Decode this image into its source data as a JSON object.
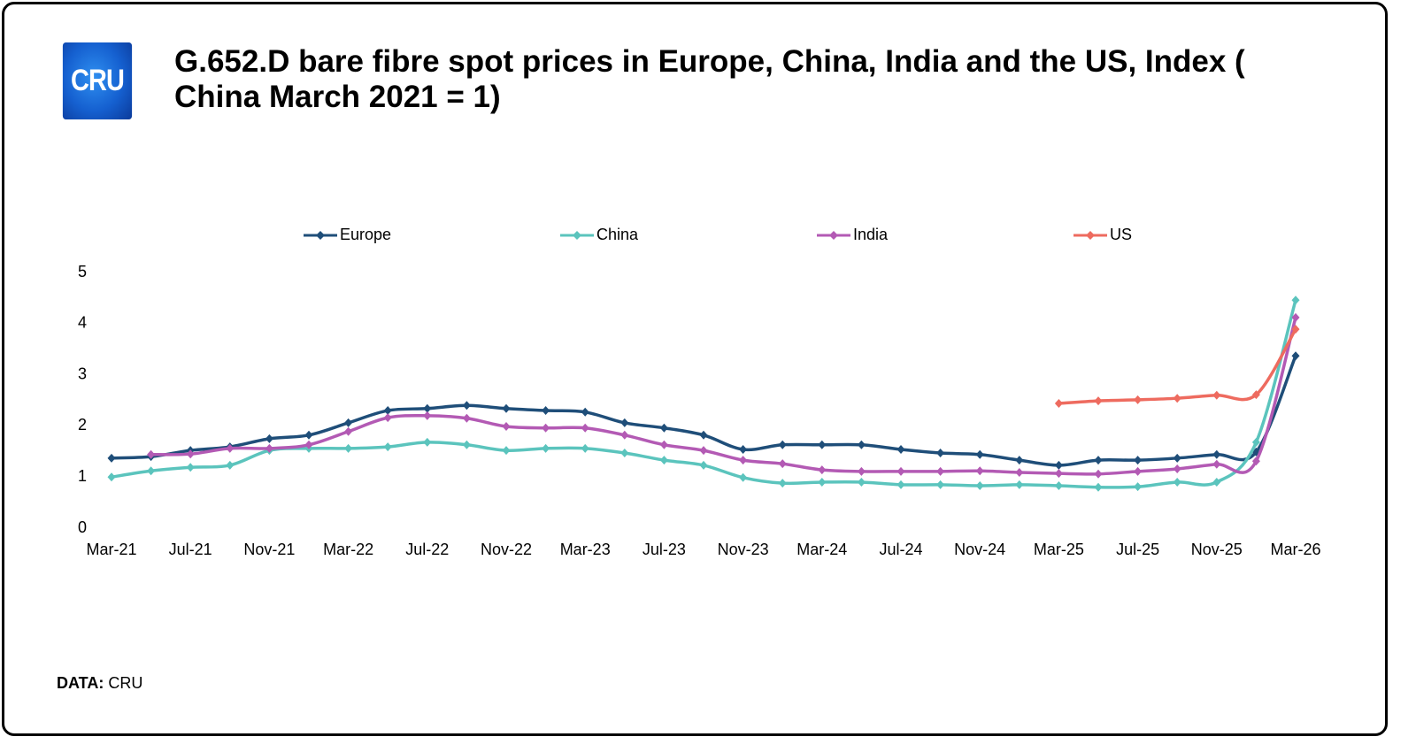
{
  "logo_text": "CRU",
  "footer": {
    "label": "DATA:",
    "source": "CRU"
  },
  "chart_data": {
    "type": "line",
    "title": "G.652.D bare fibre spot prices in Europe, China, India and the US, Index ( China March 2021 = 1)",
    "categories": [
      "Mar-21",
      null,
      "Jul-21",
      null,
      "Nov-21",
      null,
      "Mar-22",
      null,
      "Jul-22",
      null,
      "Nov-22",
      null,
      "Mar-23",
      null,
      "Jul-23",
      null,
      "Nov-23",
      null,
      "Mar-24",
      null,
      "Jul-24",
      null,
      "Nov-24",
      null,
      "Mar-25",
      null,
      "Jul-25",
      null,
      "Nov-25",
      null,
      "Mar-26"
    ],
    "ylim": [
      0,
      5
    ],
    "yticks": [
      0,
      1,
      2,
      3,
      4,
      5
    ],
    "grid": false,
    "legend": "top",
    "smooth": true,
    "series": [
      {
        "name": "Europe",
        "color": "#1f4e79",
        "values": [
          1.37,
          1.4,
          1.52,
          1.59,
          1.75,
          1.82,
          2.06,
          2.3,
          2.34,
          2.4,
          2.34,
          2.3,
          2.27,
          2.06,
          1.96,
          1.82,
          1.54,
          1.63,
          1.63,
          1.63,
          1.54,
          1.47,
          1.44,
          1.33,
          1.23,
          1.33,
          1.33,
          1.37,
          1.44,
          1.49,
          3.37
        ]
      },
      {
        "name": "China",
        "color": "#5bc4bd",
        "values": [
          1.0,
          1.12,
          1.19,
          1.23,
          1.52,
          1.56,
          1.56,
          1.59,
          1.68,
          1.63,
          1.52,
          1.56,
          1.56,
          1.47,
          1.33,
          1.23,
          0.99,
          0.88,
          0.9,
          0.9,
          0.85,
          0.85,
          0.83,
          0.85,
          0.83,
          0.8,
          0.81,
          0.9,
          0.9,
          1.68,
          4.46
        ]
      },
      {
        "name": "India",
        "color": "#b35ab4",
        "values": [
          null,
          1.44,
          1.45,
          1.56,
          1.56,
          1.63,
          1.89,
          2.16,
          2.2,
          2.15,
          1.99,
          1.96,
          1.96,
          1.82,
          1.63,
          1.52,
          1.33,
          1.26,
          1.14,
          1.11,
          1.11,
          1.11,
          1.12,
          1.09,
          1.07,
          1.06,
          1.11,
          1.16,
          1.25,
          1.31,
          4.12
        ]
      },
      {
        "name": "US",
        "color": "#ee6b5f",
        "values": [
          null,
          null,
          null,
          null,
          null,
          null,
          null,
          null,
          null,
          null,
          null,
          null,
          null,
          null,
          null,
          null,
          null,
          null,
          null,
          null,
          null,
          null,
          null,
          null,
          2.44,
          2.49,
          2.51,
          2.54,
          2.6,
          2.61,
          3.89
        ]
      }
    ]
  }
}
